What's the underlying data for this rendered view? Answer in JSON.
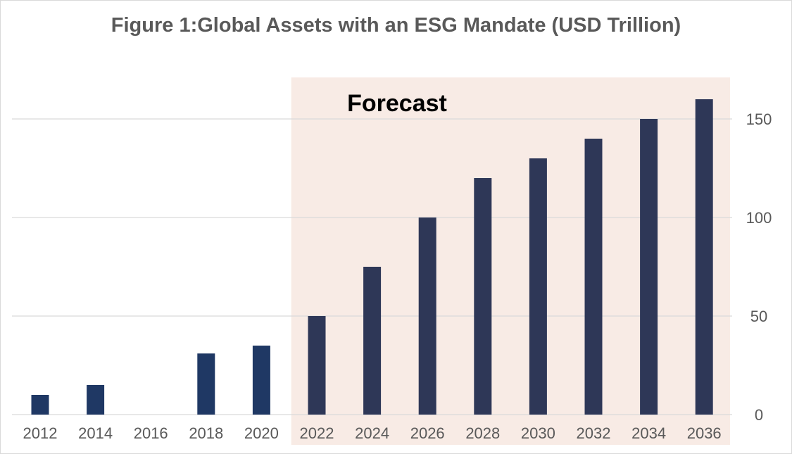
{
  "chart_data": {
    "type": "bar",
    "title": "Figure 1:Global Assets with an ESG Mandate (USD Trillion)",
    "xlabel": "",
    "ylabel": "",
    "categories": [
      "2012",
      "2014",
      "2016",
      "2018",
      "2020",
      "2022",
      "2024",
      "2026",
      "2028",
      "2030",
      "2032",
      "2034",
      "2036"
    ],
    "values": [
      10,
      15,
      0,
      31,
      35,
      50,
      75,
      100,
      120,
      130,
      140,
      150,
      160
    ],
    "ylim": [
      0,
      165
    ],
    "yticks": [
      0,
      50,
      100,
      150
    ],
    "y_axis_side": "right",
    "grid": true,
    "forecast": {
      "label": "Forecast",
      "start_category": "2022",
      "end_category": "2036",
      "shade_color": "#f8ebe5"
    },
    "colors": {
      "historical_bar": "#1f3864",
      "forecast_bar": "#2e3757",
      "gridline": "#d9d9d9",
      "text": "#595959"
    }
  }
}
